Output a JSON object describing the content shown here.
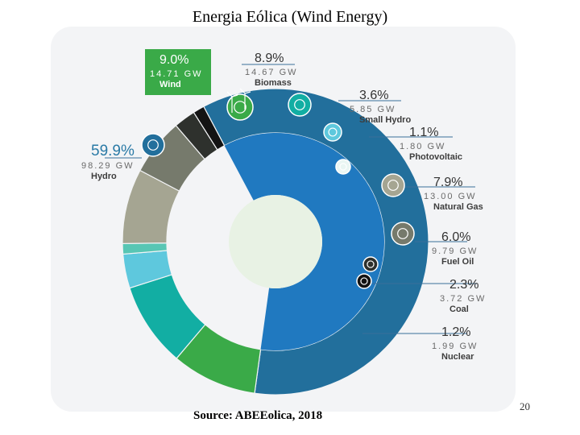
{
  "title": "Energia Eólica (Wind Energy)",
  "source": "Source: ABEEolica, 2018",
  "page_number": "20",
  "chart_data": {
    "type": "pie",
    "title": "Energia Eólica (Wind Energy)",
    "series": [
      {
        "name": "Hydro",
        "percent": 59.9,
        "percent_label": "59.9%",
        "value_label": "98.29 GW",
        "gw": 98.29,
        "color": "#226f9c",
        "icon": "water-drop-wave-icon"
      },
      {
        "name": "Wind",
        "percent": 9.0,
        "percent_label": "9.0%",
        "value_label": "14.71 GW",
        "gw": 14.71,
        "color": "#3aaa48",
        "icon": "wind-turbine-icon"
      },
      {
        "name": "Biomass",
        "percent": 8.9,
        "percent_label": "8.9%",
        "value_label": "14.67 GW",
        "gw": 14.67,
        "color": "#12aea3",
        "icon": "leaf-icon"
      },
      {
        "name": "Small Hydro",
        "percent": 3.6,
        "percent_label": "3.6%",
        "value_label": "5.85 GW",
        "gw": 5.85,
        "color": "#5ec8dd",
        "icon": "drop-icon"
      },
      {
        "name": "Photovoltaic",
        "percent": 1.1,
        "percent_label": "1.1%",
        "value_label": "1.80 GW",
        "gw": 1.8,
        "color": "#58c6b4",
        "icon": "solar-panel-icon"
      },
      {
        "name": "Natural Gas",
        "percent": 7.9,
        "percent_label": "7.9%",
        "value_label": "13.00 GW",
        "gw": 13.0,
        "color": "#a5a592",
        "icon": "flame-icon"
      },
      {
        "name": "Fuel Oil",
        "percent": 6.0,
        "percent_label": "6.0%",
        "value_label": "9.79 GW",
        "gw": 9.79,
        "color": "#767a6c",
        "icon": "fuel-pump-icon"
      },
      {
        "name": "Coal",
        "percent": 2.3,
        "percent_label": "2.3%",
        "value_label": "3.72 GW",
        "gw": 3.72,
        "color": "#2e312d",
        "icon": "coal-cart-icon"
      },
      {
        "name": "Nuclear",
        "percent": 1.2,
        "percent_label": "1.2%",
        "value_label": "1.99 GW",
        "gw": 1.99,
        "color": "#131313",
        "icon": "nuclear-icon"
      }
    ],
    "inner_ring_color": "#2079c0",
    "center_color": "#e8f2e4",
    "highlight": "Wind",
    "legend": "none"
  }
}
